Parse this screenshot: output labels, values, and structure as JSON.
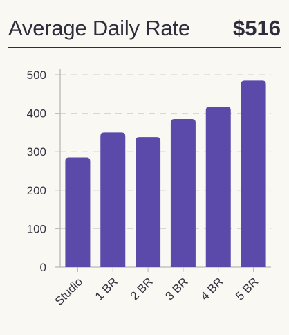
{
  "header": {
    "title": "Average Daily Rate",
    "value": "$516"
  },
  "colors": {
    "bar": "#5b4aaa",
    "grid": "#d9d7d2",
    "axis": "#b9b7b2",
    "tick_text": "#333340",
    "background": "#faf8f3"
  },
  "chart_data": {
    "type": "bar",
    "title": "",
    "xlabel": "",
    "ylabel": "",
    "categories": [
      "Studio",
      "1 BR",
      "2 BR",
      "3 BR",
      "4 BR",
      "5 BR"
    ],
    "values": [
      285,
      350,
      338,
      385,
      417,
      485
    ],
    "ylim": [
      0,
      500
    ],
    "yticks": [
      0,
      100,
      200,
      300,
      400,
      500
    ],
    "grid": true,
    "grid_style": "dashed-horizontal",
    "legend": "none"
  }
}
